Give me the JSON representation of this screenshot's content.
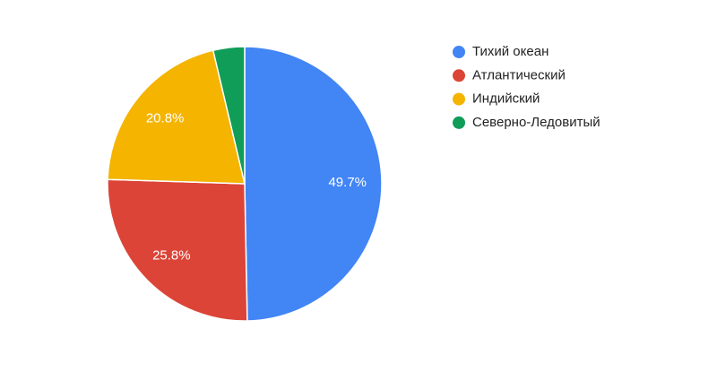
{
  "chart_data": {
    "type": "pie",
    "categories": [
      "Тихий океан",
      "Атлантический",
      "Индийский",
      "Северно-Ледовитый"
    ],
    "values": [
      49.7,
      25.8,
      20.8,
      3.7
    ],
    "value_labels": [
      "49.7%",
      "25.8%",
      "20.8%",
      null
    ],
    "colors": [
      "#4285f4",
      "#db4437",
      "#f4b400",
      "#0f9d58"
    ],
    "legend": "right"
  }
}
